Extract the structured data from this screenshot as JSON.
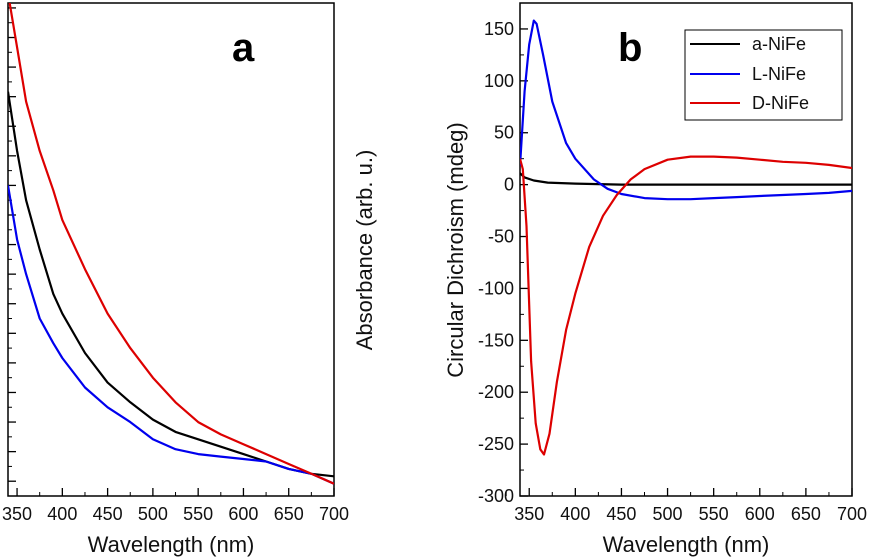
{
  "chart_data": [
    {
      "panel": "a",
      "type": "line",
      "xlabel": "Wavelength (nm)",
      "ylabel": "Absorbance (arb. u.)",
      "xlim": [
        340,
        700
      ],
      "ylim": [
        0,
        1
      ],
      "x_ticks": [
        350,
        400,
        450,
        500,
        550,
        600,
        650,
        700
      ],
      "y_tick_labels_shown": false,
      "series": [
        {
          "color": "#000000",
          "points": [
            [
              340,
              0.82
            ],
            [
              350,
              0.7
            ],
            [
              360,
              0.6
            ],
            [
              375,
              0.5
            ],
            [
              390,
              0.41
            ],
            [
              400,
              0.37
            ],
            [
              425,
              0.29
            ],
            [
              450,
              0.23
            ],
            [
              475,
              0.19
            ],
            [
              500,
              0.155
            ],
            [
              525,
              0.13
            ],
            [
              550,
              0.115
            ],
            [
              575,
              0.1
            ],
            [
              600,
              0.085
            ],
            [
              625,
              0.07
            ],
            [
              650,
              0.055
            ],
            [
              675,
              0.045
            ],
            [
              700,
              0.04
            ]
          ]
        },
        {
          "color": "#0000ee",
          "points": [
            [
              340,
              0.63
            ],
            [
              350,
              0.52
            ],
            [
              360,
              0.45
            ],
            [
              375,
              0.36
            ],
            [
              390,
              0.31
            ],
            [
              400,
              0.28
            ],
            [
              425,
              0.22
            ],
            [
              450,
              0.18
            ],
            [
              475,
              0.15
            ],
            [
              500,
              0.115
            ],
            [
              525,
              0.095
            ],
            [
              550,
              0.085
            ],
            [
              575,
              0.08
            ],
            [
              600,
              0.075
            ],
            [
              625,
              0.07
            ],
            [
              650,
              0.055
            ],
            [
              675,
              0.045
            ],
            [
              700,
              0.025
            ]
          ]
        },
        {
          "color": "#dd0000",
          "points": [
            [
              340,
              1.02
            ],
            [
              350,
              0.91
            ],
            [
              360,
              0.8
            ],
            [
              375,
              0.7
            ],
            [
              390,
              0.62
            ],
            [
              400,
              0.56
            ],
            [
              425,
              0.46
            ],
            [
              450,
              0.37
            ],
            [
              475,
              0.3
            ],
            [
              500,
              0.24
            ],
            [
              525,
              0.19
            ],
            [
              550,
              0.15
            ],
            [
              575,
              0.125
            ],
            [
              600,
              0.105
            ],
            [
              625,
              0.085
            ],
            [
              650,
              0.065
            ],
            [
              675,
              0.045
            ],
            [
              700,
              0.025
            ]
          ]
        }
      ]
    },
    {
      "panel": "b",
      "type": "line",
      "xlabel": "Wavelength (nm)",
      "ylabel": "Circular Dichroism (mdeg)",
      "xlim": [
        340,
        700
      ],
      "ylim": [
        -300,
        175
      ],
      "x_ticks": [
        350,
        400,
        450,
        500,
        550,
        600,
        650,
        700
      ],
      "y_ticks": [
        150,
        100,
        50,
        0,
        -50,
        -100,
        -150,
        -200,
        -250,
        -300
      ],
      "legend_position": "top-right",
      "series": [
        {
          "name": "a-NiFe",
          "color": "#000000",
          "points": [
            [
              340,
              11
            ],
            [
              345,
              7
            ],
            [
              355,
              4
            ],
            [
              370,
              2
            ],
            [
              400,
              1
            ],
            [
              450,
              0
            ],
            [
              500,
              0
            ],
            [
              550,
              0
            ],
            [
              600,
              0
            ],
            [
              650,
              0
            ],
            [
              700,
              0
            ]
          ]
        },
        {
          "name": "L-NiFe",
          "color": "#0000ee",
          "points": [
            [
              340,
              18
            ],
            [
              345,
              90
            ],
            [
              350,
              135
            ],
            [
              355,
              158
            ],
            [
              358,
              155
            ],
            [
              365,
              125
            ],
            [
              375,
              80
            ],
            [
              390,
              40
            ],
            [
              400,
              25
            ],
            [
              420,
              5
            ],
            [
              435,
              -4
            ],
            [
              450,
              -9
            ],
            [
              475,
              -13
            ],
            [
              500,
              -14
            ],
            [
              525,
              -14
            ],
            [
              550,
              -13
            ],
            [
              575,
              -12
            ],
            [
              600,
              -11
            ],
            [
              625,
              -10
            ],
            [
              650,
              -9
            ],
            [
              675,
              -8
            ],
            [
              700,
              -6
            ]
          ]
        },
        {
          "name": "D-NiFe",
          "color": "#dd0000",
          "points": [
            [
              340,
              25
            ],
            [
              343,
              15
            ],
            [
              347,
              -40
            ],
            [
              352,
              -170
            ],
            [
              357,
              -230
            ],
            [
              362,
              -255
            ],
            [
              366,
              -260
            ],
            [
              372,
              -240
            ],
            [
              380,
              -190
            ],
            [
              390,
              -140
            ],
            [
              400,
              -105
            ],
            [
              415,
              -60
            ],
            [
              430,
              -30
            ],
            [
              445,
              -10
            ],
            [
              460,
              5
            ],
            [
              475,
              15
            ],
            [
              500,
              24
            ],
            [
              525,
              27
            ],
            [
              550,
              27
            ],
            [
              575,
              26
            ],
            [
              600,
              24
            ],
            [
              625,
              22
            ],
            [
              650,
              21
            ],
            [
              675,
              19
            ],
            [
              700,
              16
            ]
          ]
        }
      ]
    }
  ]
}
